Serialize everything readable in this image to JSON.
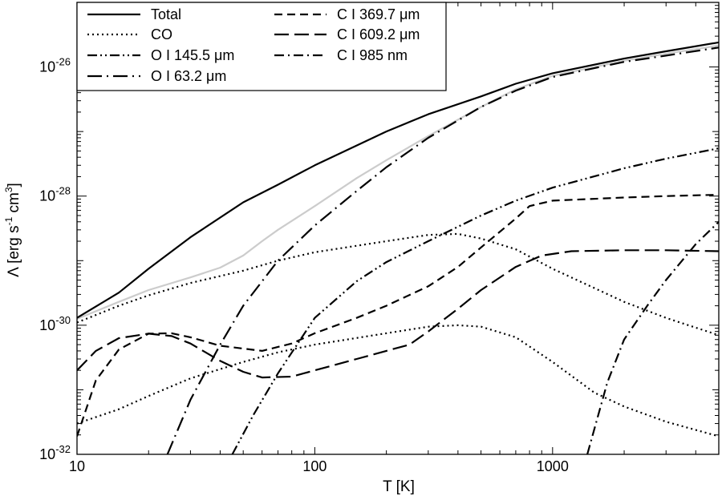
{
  "chart_data": {
    "type": "line",
    "title": "",
    "xlabel": "T [K]",
    "ylabel": {
      "base": "Λ [erg s",
      "exp1": "-1",
      "mid": " cm",
      "exp2": "3",
      "end": "]"
    },
    "xscale": "log",
    "yscale": "log",
    "xlim": [
      10,
      5000
    ],
    "ylim": [
      1e-32,
      1e-25
    ],
    "x_ticks": [
      {
        "value": 10,
        "label": "10"
      },
      {
        "value": 100,
        "label": "100"
      },
      {
        "value": 1000,
        "label": "1000"
      }
    ],
    "y_ticks": [
      {
        "value": 1e-32,
        "base": "10",
        "exp": "-32"
      },
      {
        "value": 1e-30,
        "base": "10",
        "exp": "-30"
      },
      {
        "value": 1e-28,
        "base": "10",
        "exp": "-28"
      },
      {
        "value": 1e-26,
        "base": "10",
        "exp": "-26"
      }
    ],
    "grid": false,
    "legend_position": "top-left",
    "series": [
      {
        "name": "Total",
        "style": "solid",
        "color": "#000000",
        "legend_col": 0,
        "legend_row": 0,
        "points": [
          [
            10,
            1.3e-30
          ],
          [
            15,
            3.2e-30
          ],
          [
            20,
            7.5e-30
          ],
          [
            30,
            2.3e-29
          ],
          [
            50,
            8e-29
          ],
          [
            70,
            1.5e-28
          ],
          [
            100,
            3e-28
          ],
          [
            200,
            1e-27
          ],
          [
            300,
            1.85e-27
          ],
          [
            500,
            3.5e-27
          ],
          [
            700,
            5.5e-27
          ],
          [
            1000,
            8e-27
          ],
          [
            2000,
            1.35e-26
          ],
          [
            3000,
            1.75e-26
          ],
          [
            5000,
            2.4e-26
          ]
        ]
      },
      {
        "name": "CO",
        "style": "dotted",
        "color": "#000000",
        "legend_col": 0,
        "legend_row": 1,
        "points": [
          [
            10,
            1.1e-30
          ],
          [
            15,
            2e-30
          ],
          [
            20,
            2.9e-30
          ],
          [
            30,
            4.5e-30
          ],
          [
            50,
            7e-30
          ],
          [
            70,
            1e-29
          ],
          [
            100,
            1.35e-29
          ],
          [
            200,
            2e-29
          ],
          [
            300,
            2.5e-29
          ],
          [
            400,
            2.6e-29
          ],
          [
            500,
            2.2e-29
          ],
          [
            700,
            1.5e-29
          ],
          [
            1000,
            7.5e-30
          ],
          [
            2000,
            2.3e-30
          ],
          [
            3000,
            1.3e-30
          ],
          [
            5000,
            7e-31
          ]
        ]
      },
      {
        "name": "CO",
        "style": "dotted",
        "color": "#000000",
        "legend": false,
        "points": [
          [
            10,
            3e-32
          ],
          [
            15,
            5e-32
          ],
          [
            20,
            8e-32
          ],
          [
            30,
            1.5e-31
          ],
          [
            50,
            2.7e-31
          ],
          [
            70,
            3.8e-31
          ],
          [
            100,
            5e-31
          ],
          [
            200,
            7.5e-31
          ],
          [
            300,
            9.5e-31
          ],
          [
            400,
            1e-30
          ],
          [
            500,
            9.5e-31
          ],
          [
            700,
            6.5e-31
          ],
          [
            1000,
            2.7e-31
          ],
          [
            1500,
            9e-32
          ],
          [
            2000,
            5.5e-32
          ],
          [
            3000,
            3.2e-32
          ],
          [
            5000,
            1.9e-32
          ]
        ]
      },
      {
        "name": "O I 145.5 μm",
        "style": "dashdotdot",
        "color": "#000000",
        "legend_col": 0,
        "legend_row": 2,
        "points": [
          [
            45,
            1e-32
          ],
          [
            55,
            4e-32
          ],
          [
            70,
            1.8e-31
          ],
          [
            100,
            1.3e-30
          ],
          [
            150,
            4.8e-30
          ],
          [
            200,
            9.5e-30
          ],
          [
            300,
            2e-29
          ],
          [
            500,
            5e-29
          ],
          [
            700,
            8.5e-29
          ],
          [
            1000,
            1.35e-28
          ],
          [
            2000,
            2.7e-28
          ],
          [
            3000,
            3.8e-28
          ],
          [
            5000,
            5.5e-28
          ]
        ]
      },
      {
        "name": "O I 63.2 μm",
        "style": "longdashdot",
        "color": "#000000",
        "legend_col": 0,
        "legend_row": 3,
        "points": [
          [
            24,
            1e-32
          ],
          [
            30,
            7e-32
          ],
          [
            40,
            5e-31
          ],
          [
            50,
            2e-30
          ],
          [
            70,
            1e-29
          ],
          [
            100,
            3.5e-29
          ],
          [
            150,
            1.2e-28
          ],
          [
            200,
            2.8e-28
          ],
          [
            300,
            8e-28
          ],
          [
            500,
            2.4e-27
          ],
          [
            700,
            4.3e-27
          ],
          [
            1000,
            7e-27
          ],
          [
            2000,
            1.2e-26
          ],
          [
            3000,
            1.5e-26
          ],
          [
            5000,
            2e-26
          ]
        ]
      },
      {
        "name": "C I 369.7 μm",
        "style": "dashed",
        "color": "#000000",
        "legend_col": 1,
        "legend_row": 0,
        "points": [
          [
            10,
            1.9e-32
          ],
          [
            12,
            1.4e-31
          ],
          [
            15,
            4.2e-31
          ],
          [
            20,
            7.4e-31
          ],
          [
            25,
            7.5e-31
          ],
          [
            30,
            6.5e-31
          ],
          [
            40,
            4.8e-31
          ],
          [
            60,
            4e-31
          ],
          [
            80,
            5.2e-31
          ],
          [
            100,
            7.5e-31
          ],
          [
            150,
            1.3e-30
          ],
          [
            200,
            2e-30
          ],
          [
            300,
            4e-30
          ],
          [
            400,
            8e-30
          ],
          [
            500,
            1.6e-29
          ],
          [
            700,
            4.5e-29
          ],
          [
            800,
            7e-29
          ],
          [
            1000,
            8.5e-29
          ],
          [
            2000,
            9.5e-29
          ],
          [
            3000,
            1e-28
          ],
          [
            5000,
            1.05e-28
          ]
        ]
      },
      {
        "name": "C I 609.2 μm",
        "style": "longdashed",
        "color": "#000000",
        "legend_col": 1,
        "legend_row": 1,
        "points": [
          [
            10,
            2e-31
          ],
          [
            12,
            4e-31
          ],
          [
            15,
            6.3e-31
          ],
          [
            20,
            7.4e-31
          ],
          [
            25,
            6.8e-31
          ],
          [
            30,
            5.2e-31
          ],
          [
            40,
            2.8e-31
          ],
          [
            50,
            1.9e-31
          ],
          [
            60,
            1.55e-31
          ],
          [
            80,
            1.6e-31
          ],
          [
            100,
            2e-31
          ],
          [
            150,
            3e-31
          ],
          [
            200,
            4e-31
          ],
          [
            250,
            5e-31
          ],
          [
            300,
            8e-31
          ],
          [
            400,
            1.8e-30
          ],
          [
            500,
            3.5e-30
          ],
          [
            700,
            8e-30
          ],
          [
            900,
            1.2e-29
          ],
          [
            1200,
            1.4e-29
          ],
          [
            2000,
            1.45e-29
          ],
          [
            3000,
            1.45e-29
          ],
          [
            5000,
            1.4e-29
          ]
        ]
      },
      {
        "name": "C I 985 nm",
        "style": "dashdot",
        "color": "#000000",
        "legend_col": 1,
        "legend_row": 2,
        "points": [
          [
            1400,
            1e-32
          ],
          [
            1700,
            1.3e-31
          ],
          [
            2000,
            6e-31
          ],
          [
            2500,
            2e-30
          ],
          [
            3000,
            5e-30
          ],
          [
            4000,
            1.8e-29
          ],
          [
            5000,
            4e-29
          ]
        ]
      },
      {
        "name": "",
        "style": "solid",
        "color": "#cccccc",
        "legend": false,
        "points": [
          [
            10,
            1.25e-30
          ],
          [
            15,
            2.3e-30
          ],
          [
            20,
            3.5e-30
          ],
          [
            30,
            5.5e-30
          ],
          [
            40,
            7.8e-30
          ],
          [
            50,
            1.2e-29
          ],
          [
            60,
            2e-29
          ],
          [
            70,
            3e-29
          ],
          [
            100,
            7e-29
          ],
          [
            150,
            1.9e-28
          ],
          [
            200,
            3.6e-28
          ],
          [
            300,
            8.5e-28
          ],
          [
            500,
            2.4e-27
          ],
          [
            700,
            4.5e-27
          ],
          [
            1000,
            7.3e-27
          ],
          [
            2000,
            1.25e-26
          ],
          [
            3000,
            1.6e-26
          ],
          [
            5000,
            2.15e-26
          ]
        ]
      }
    ]
  }
}
